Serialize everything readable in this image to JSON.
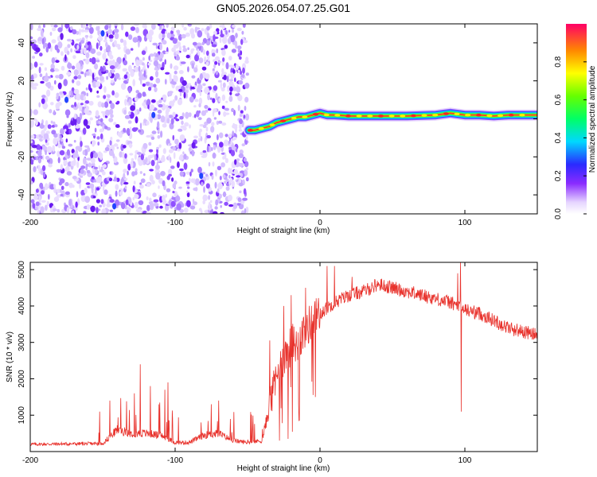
{
  "title": "GN05.2026.054.07.25.G01",
  "chart_data": [
    {
      "type": "heatmap",
      "name": "spectrogram",
      "xlabel": "Height of straight line (km)",
      "ylabel": "Frequency (Hz)",
      "xlim": [
        -200,
        150
      ],
      "ylim": [
        -50,
        50
      ],
      "xticks": [
        -200,
        -100,
        0,
        100
      ],
      "yticks": [
        -40,
        -20,
        0,
        20,
        40
      ],
      "noise_region_x": [
        -200,
        -50
      ],
      "band_trace": {
        "x": [
          -49,
          -45,
          -40,
          -35,
          -30,
          -25,
          -20,
          -15,
          -10,
          -5,
          0,
          5,
          10,
          20,
          40,
          60,
          80,
          90,
          100,
          110,
          120,
          130,
          150
        ],
        "y": [
          -6,
          -6,
          -5,
          -4,
          -2,
          -1,
          0,
          1,
          1,
          2,
          3,
          2,
          2,
          1.5,
          1.5,
          1.5,
          2,
          3,
          2,
          2,
          1.5,
          2,
          2
        ]
      },
      "colorbar": {
        "label": "Normalized spectral amplitude",
        "range": [
          0,
          1
        ],
        "ticks": [
          "0.0",
          "0.2",
          "0.4",
          "0.6",
          "0.8"
        ]
      }
    },
    {
      "type": "line",
      "name": "snr",
      "xlabel": "Height of straight line (km)",
      "ylabel": "SNR (10 * v/v)",
      "xlim": [
        -200,
        150
      ],
      "ylim": [
        0,
        5200
      ],
      "xticks": [
        -200,
        -100,
        0,
        100
      ],
      "yticks": [
        1000,
        2000,
        3000,
        4000,
        5000
      ],
      "color": "#e8322c",
      "envelope": {
        "x": [
          -200,
          -150,
          -140,
          -130,
          -120,
          -110,
          -100,
          -90,
          -80,
          -70,
          -60,
          -50,
          -40,
          -35,
          -30,
          -25,
          -20,
          -15,
          -10,
          -5,
          0,
          10,
          20,
          30,
          40,
          50,
          60,
          70,
          80,
          90,
          100,
          110,
          120,
          130,
          140,
          150
        ],
        "y": [
          200,
          220,
          600,
          500,
          500,
          450,
          250,
          250,
          450,
          500,
          300,
          250,
          300,
          1200,
          2000,
          2600,
          2900,
          3000,
          3400,
          3600,
          3800,
          4100,
          4300,
          4400,
          4600,
          4500,
          4400,
          4300,
          4200,
          4100,
          3900,
          3800,
          3600,
          3400,
          3300,
          3200
        ]
      },
      "spikes": [
        {
          "x": -145,
          "y": 1400
        },
        {
          "x": -128,
          "y": 1600
        },
        {
          "x": -124,
          "y": 2400
        },
        {
          "x": -117,
          "y": 1800
        },
        {
          "x": -107,
          "y": 1700
        },
        {
          "x": -105,
          "y": 1900
        },
        {
          "x": -82,
          "y": 800
        },
        {
          "x": -75,
          "y": 1300
        },
        {
          "x": -70,
          "y": 1400
        },
        {
          "x": -25,
          "y": 4000
        },
        {
          "x": -20,
          "y": 4300
        },
        {
          "x": -10,
          "y": 4500
        },
        {
          "x": 5,
          "y": 5100
        },
        {
          "x": 10,
          "y": 5100
        },
        {
          "x": 22,
          "y": 4800
        },
        {
          "x": 95,
          "y": 4900
        },
        {
          "x": 97,
          "y": 5200
        },
        {
          "x": 97.5,
          "y": 1100
        },
        {
          "x": -28,
          "y": 300
        },
        {
          "x": -22,
          "y": 350
        }
      ]
    }
  ]
}
